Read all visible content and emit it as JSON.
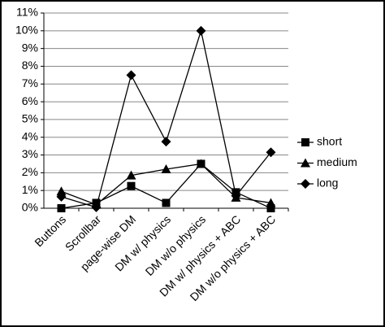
{
  "chart_data": {
    "type": "line",
    "categories": [
      "Buttons",
      "Scrollbar",
      "page-wise DM",
      "DM w/ physics",
      "DM w/o physics",
      "DM w/ physics + ABC",
      "DM w/o physics + ABC"
    ],
    "series": [
      {
        "name": "short",
        "color": "#000000",
        "marker": "square",
        "values": [
          0,
          0.3,
          1.25,
          0.3,
          2.5,
          0.9,
          0
        ]
      },
      {
        "name": "medium",
        "color": "#000000",
        "marker": "triangle",
        "values": [
          0.95,
          0.2,
          1.85,
          2.2,
          2.5,
          0.6,
          0.3
        ]
      },
      {
        "name": "long",
        "color": "#000000",
        "marker": "diamond",
        "values": [
          0.65,
          0.05,
          7.5,
          3.75,
          10,
          0.7,
          3.15
        ]
      }
    ],
    "ylim": [
      0,
      11
    ],
    "yticks": [
      {
        "value": 0,
        "label": "0%"
      },
      {
        "value": 1,
        "label": "1%"
      },
      {
        "value": 2,
        "label": "2%"
      },
      {
        "value": 3,
        "label": "3%"
      },
      {
        "value": 4,
        "label": "4%"
      },
      {
        "value": 5,
        "label": "5%"
      },
      {
        "value": 6,
        "label": "6%"
      },
      {
        "value": 7,
        "label": "7%"
      },
      {
        "value": 8,
        "label": "8%"
      },
      {
        "value": 9,
        "label": "9%"
      },
      {
        "value": 10,
        "label": "10%"
      },
      {
        "value": 11,
        "label": "11%"
      }
    ],
    "grid": true,
    "legend": "right"
  }
}
